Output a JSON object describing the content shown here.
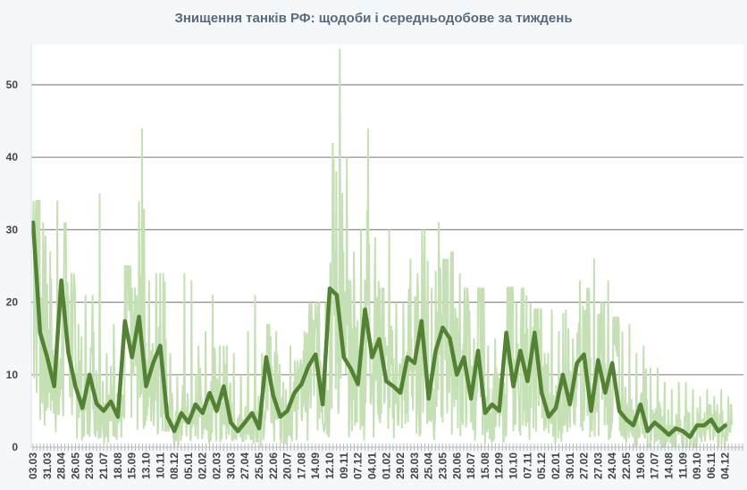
{
  "chart_data": {
    "type": "line",
    "title": "Знищення танків РФ: щодоби і середньодобове за тиждень",
    "xlabel": "",
    "ylabel": "",
    "ylim": [
      0,
      55
    ],
    "yticks": [
      "0",
      "10",
      "20",
      "30",
      "40",
      "50"
    ],
    "grid": true,
    "x_tick_labels": [
      "03.03",
      "31.03",
      "28.04",
      "26.05",
      "23.06",
      "21.07",
      "18.08",
      "15.09",
      "13.10",
      "10.11",
      "08.12",
      "05.01",
      "02.02",
      "02.03",
      "30.03",
      "27.04",
      "25.05",
      "22.06",
      "20.07",
      "17.08",
      "14.09",
      "12.10",
      "09.11",
      "07.12",
      "04.01",
      "01.02",
      "29.02",
      "28.03",
      "25.04",
      "23.05",
      "20.06",
      "18.07",
      "15.08",
      "12.09",
      "10.10",
      "07.11",
      "05.12",
      "02.01",
      "30.01",
      "27.02",
      "27.03",
      "24.04",
      "22.05",
      "19.06",
      "17.07",
      "14.08",
      "11.09",
      "09.10",
      "06.11",
      "04.12"
    ],
    "x_sampling": "every 2 weeks from 03.03",
    "series": [
      {
        "name": "щодоби (daily, max per 2 weeks)",
        "color": "#c5e0b4",
        "values": [
          34,
          31,
          27,
          34,
          31,
          24,
          17,
          21,
          21,
          35,
          13,
          17,
          12,
          25,
          22,
          44,
          23,
          24,
          24,
          13,
          10,
          24,
          23,
          14,
          16,
          21,
          14,
          14,
          13,
          10,
          16,
          21,
          13,
          17,
          16,
          9,
          14,
          12,
          16,
          20,
          20,
          20,
          42,
          55,
          40,
          27,
          30,
          44,
          29,
          22,
          30,
          20,
          20,
          26,
          24,
          30,
          22,
          31,
          26,
          27,
          24,
          22,
          15,
          22,
          14,
          15,
          12,
          22,
          20,
          22,
          20,
          19,
          13,
          19,
          16,
          19,
          15,
          23,
          22,
          26,
          20,
          23,
          18,
          16,
          17,
          13,
          14,
          11,
          11,
          9,
          8,
          9,
          9,
          8,
          7,
          8,
          7,
          8,
          7
        ]
      },
      {
        "name": "середньодобове за тиждень",
        "color": "#548235",
        "values": [
          31,
          15.8,
          12.4,
          8.4,
          23,
          13,
          8.4,
          5.4,
          10,
          6,
          5,
          6.3,
          4.2,
          17.4,
          12.4,
          18,
          8.4,
          11.6,
          14,
          4.2,
          2.2,
          4.7,
          3.4,
          5.9,
          4.7,
          7.5,
          5,
          8.4,
          3.4,
          2.2,
          3.4,
          4.7,
          2.6,
          12.4,
          7.1,
          4.2,
          5,
          7.5,
          8.7,
          11.2,
          12.8,
          5.9,
          21.9,
          21,
          12.4,
          10.8,
          8.7,
          19,
          12.4,
          14.9,
          9.1,
          8.4,
          7.5,
          12.4,
          11.6,
          17.4,
          6.7,
          13.3,
          16.5,
          15,
          10,
          12.4,
          6.7,
          13.3,
          4.7,
          5.9,
          5,
          15.8,
          8.4,
          13.3,
          9.1,
          15.8,
          7.5,
          4.2,
          5.4,
          10,
          5.9,
          11.6,
          12.8,
          5,
          12,
          7.5,
          11.6,
          5,
          3.8,
          3,
          5.9,
          2.2,
          3.4,
          2.6,
          1.7,
          2.6,
          2.2,
          1.4,
          3,
          3,
          3.8,
          2.2,
          3
        ]
      }
    ]
  }
}
